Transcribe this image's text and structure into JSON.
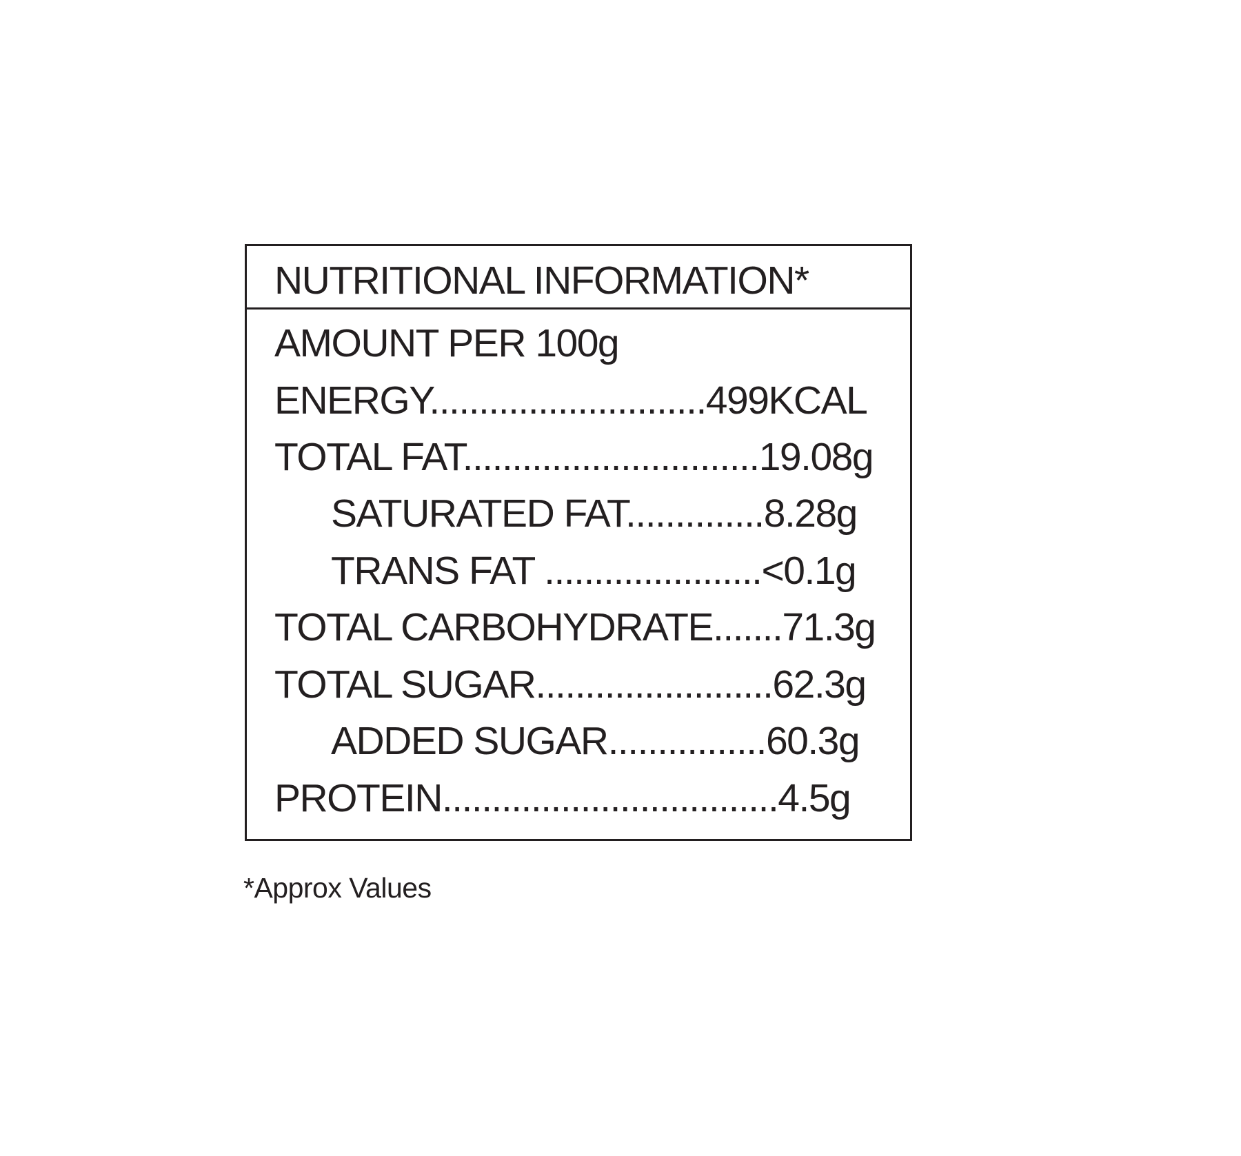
{
  "label": {
    "title": "NUTRITIONAL INFORMATION*",
    "serving": "AMOUNT PER 100g",
    "rows": [
      {
        "text": "ENERGY............................499KCAL"
      },
      {
        "text": "TOTAL FAT..............................19.08g"
      },
      {
        "text": "SATURATED FAT..............8.28g"
      },
      {
        "text": "TRANS FAT ......................<0.1g"
      },
      {
        "text": "TOTAL CARBOHYDRATE.......71.3g"
      },
      {
        "text": "TOTAL SUGAR........................62.3g"
      },
      {
        "text": "ADDED SUGAR................60.3g"
      },
      {
        "text": "PROTEIN..................................4.5g"
      }
    ],
    "footnote": "*Approx Values"
  }
}
